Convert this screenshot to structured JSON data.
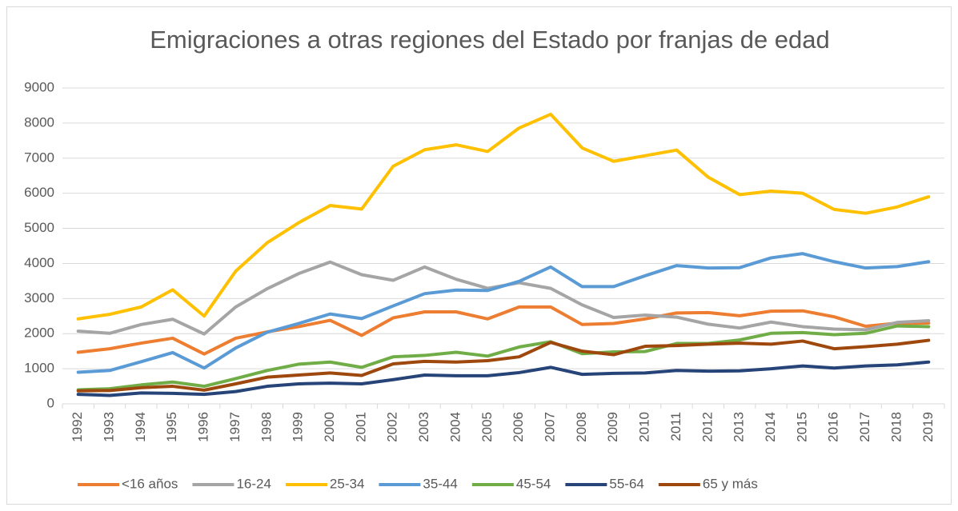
{
  "chart_data": {
    "type": "line",
    "title": "Emigraciones a otras regiones del Estado por franjas de edad",
    "categories": [
      "1992",
      "1993",
      "1994",
      "1995",
      "1996",
      "1997",
      "1998",
      "1999",
      "2000",
      "2001",
      "2002",
      "2003",
      "2004",
      "2005",
      "2006",
      "2007",
      "2008",
      "2009",
      "2010",
      "2011",
      "2012",
      "2013",
      "2014",
      "2015",
      "2016",
      "2017",
      "2018",
      "2019"
    ],
    "series": [
      {
        "name": "<16 años",
        "color": "#ED7D31",
        "values": [
          1470,
          1570,
          1730,
          1870,
          1420,
          1870,
          2050,
          2200,
          2380,
          1950,
          2450,
          2620,
          2620,
          2420,
          2760,
          2760,
          2260,
          2290,
          2420,
          2590,
          2600,
          2510,
          2640,
          2650,
          2480,
          2210,
          2300,
          2300
        ]
      },
      {
        "name": "16-24",
        "color": "#A5A5A5",
        "values": [
          2070,
          2010,
          2260,
          2410,
          1990,
          2760,
          3280,
          3710,
          4040,
          3680,
          3520,
          3900,
          3550,
          3290,
          3450,
          3290,
          2820,
          2460,
          2530,
          2470,
          2270,
          2160,
          2330,
          2200,
          2130,
          2110,
          2320,
          2370
        ]
      },
      {
        "name": "25-34",
        "color": "#FFC000",
        "values": [
          2420,
          2550,
          2760,
          3250,
          2500,
          3780,
          4590,
          5160,
          5650,
          5550,
          6770,
          7240,
          7380,
          7190,
          7860,
          8250,
          7290,
          6910,
          7070,
          7230,
          6460,
          5960,
          6060,
          6000,
          5540,
          5430,
          5610,
          5900
        ]
      },
      {
        "name": "35-44",
        "color": "#5B9BD5",
        "values": [
          900,
          950,
          1200,
          1460,
          1020,
          1590,
          2040,
          2290,
          2560,
          2430,
          2790,
          3140,
          3240,
          3230,
          3490,
          3900,
          3340,
          3340,
          3650,
          3940,
          3870,
          3880,
          4160,
          4280,
          4050,
          3870,
          3910,
          4050
        ]
      },
      {
        "name": "45-54",
        "color": "#70AD47",
        "values": [
          400,
          430,
          540,
          620,
          500,
          720,
          950,
          1130,
          1190,
          1040,
          1340,
          1380,
          1470,
          1360,
          1620,
          1770,
          1430,
          1480,
          1490,
          1720,
          1720,
          1820,
          2010,
          2030,
          1970,
          2010,
          2220,
          2200
        ]
      },
      {
        "name": "55-64",
        "color": "#264478",
        "values": [
          270,
          240,
          310,
          300,
          270,
          350,
          500,
          570,
          590,
          570,
          690,
          820,
          800,
          800,
          890,
          1040,
          840,
          870,
          880,
          950,
          930,
          940,
          1000,
          1080,
          1020,
          1080,
          1110,
          1190
        ]
      },
      {
        "name": "65 y más",
        "color": "#9E480E",
        "values": [
          370,
          380,
          460,
          500,
          390,
          570,
          760,
          820,
          880,
          810,
          1140,
          1210,
          1190,
          1230,
          1340,
          1750,
          1500,
          1400,
          1640,
          1660,
          1700,
          1730,
          1700,
          1790,
          1570,
          1630,
          1700,
          1810
        ]
      }
    ],
    "ylim": [
      0,
      9000
    ],
    "yticks": [
      0,
      1000,
      2000,
      3000,
      4000,
      5000,
      6000,
      7000,
      8000,
      9000
    ],
    "grid": true,
    "legend": "bottom"
  }
}
